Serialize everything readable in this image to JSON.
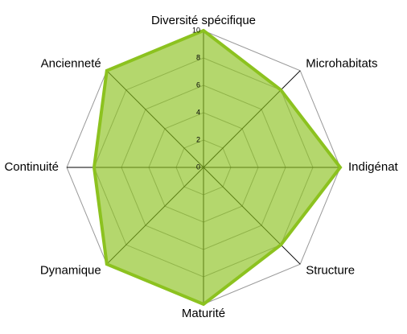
{
  "chart_data": {
    "type": "radar",
    "categories": [
      "Diversité spécifique",
      "Microhabitats",
      "Indigénat",
      "Structure",
      "Maturité",
      "Dynamique",
      "Continuité",
      "Ancienneté"
    ],
    "series": [
      {
        "color": "#8cc21f",
        "values": [
          10,
          8,
          10,
          8,
          10,
          10,
          8,
          10
        ]
      }
    ],
    "rlim": [
      0,
      10
    ],
    "rticks": [
      0,
      2,
      4,
      6,
      8,
      10
    ],
    "grid": true
  }
}
